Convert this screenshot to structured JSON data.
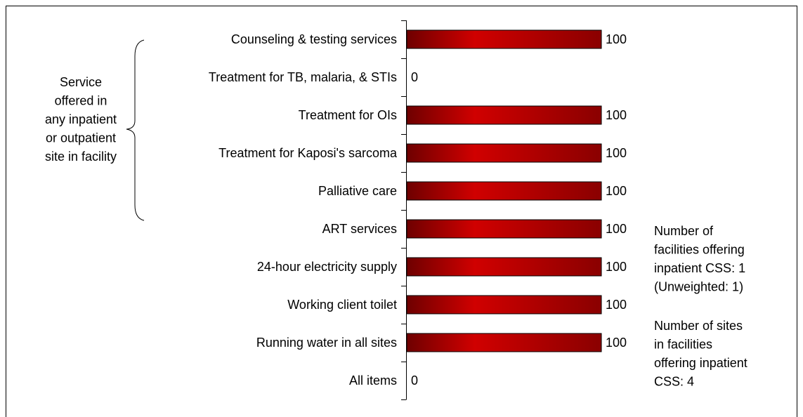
{
  "chart_data": {
    "type": "bar",
    "orientation": "horizontal",
    "categories": [
      "Counseling & testing services",
      "Treatment for TB, malaria, & STIs",
      "Treatment for OIs",
      "Treatment for Kaposi's sarcoma",
      "Palliative care",
      "ART services",
      "24-hour electricity supply",
      "Working client toilet",
      "Running water in all sites",
      "All items"
    ],
    "values": [
      100,
      0,
      100,
      100,
      100,
      100,
      100,
      100,
      100,
      0
    ],
    "color": "#d00000",
    "xlim": [
      0,
      100
    ],
    "annotations": [
      {
        "lines": [
          "Service",
          "offered in",
          "any inpatient",
          "or outpatient",
          "site in facility"
        ]
      },
      {
        "lines": [
          "Number of",
          "facilities offering",
          "inpatient CSS: 1",
          "(Unweighted: 1)"
        ]
      },
      {
        "lines": [
          "Number of sites",
          "in facilities",
          "offering inpatient",
          "CSS: 4"
        ]
      }
    ]
  }
}
